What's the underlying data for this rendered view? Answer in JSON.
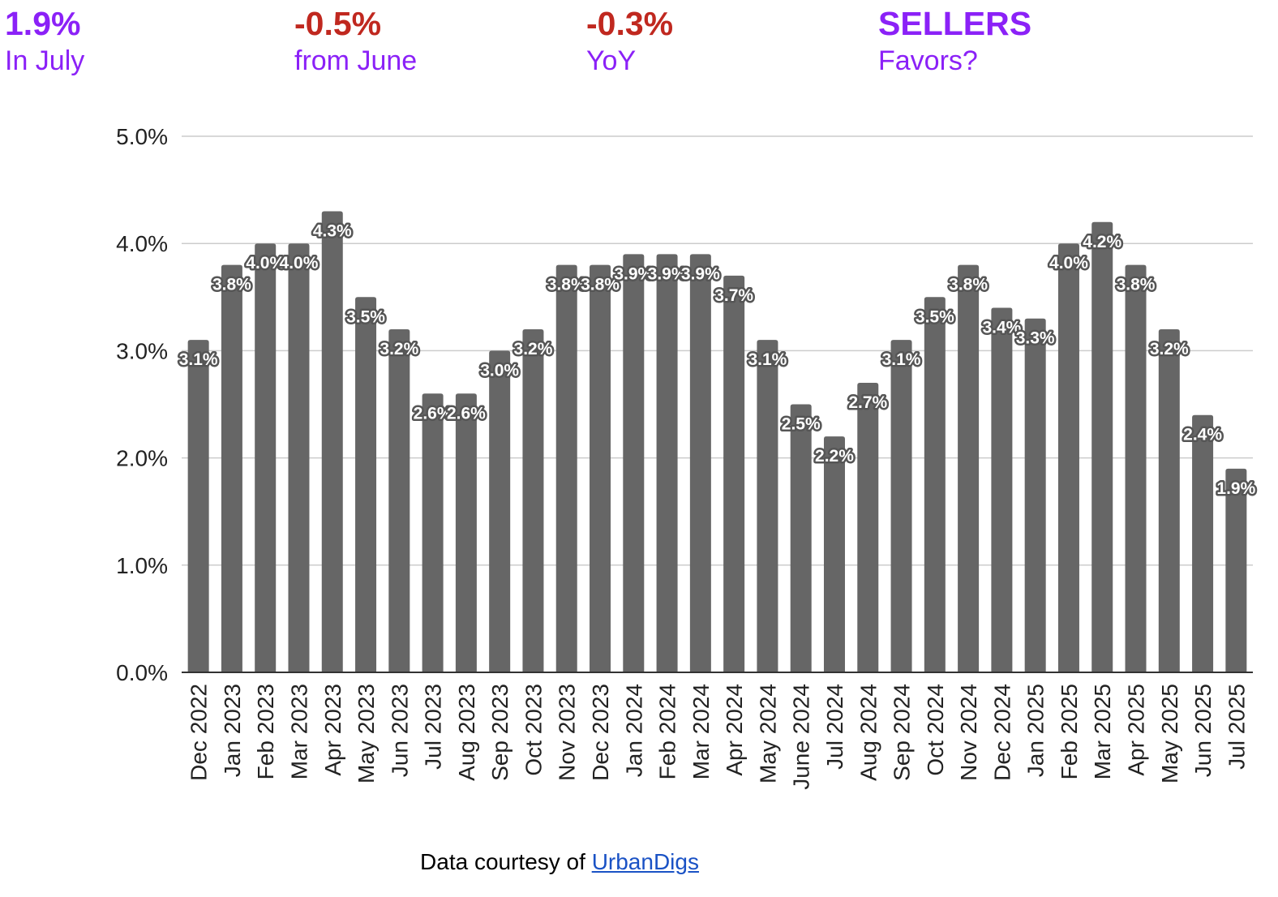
{
  "stats": [
    {
      "value": "1.9%",
      "label": "In July",
      "value_color": "#8b21f7",
      "label_color": "#8b21f7"
    },
    {
      "value": "-0.5%",
      "label": "from June",
      "value_color": "#c0281f",
      "label_color": "#8b21f7"
    },
    {
      "value": "-0.3%",
      "label": "YoY",
      "value_color": "#c0281f",
      "label_color": "#8b21f7"
    },
    {
      "value": "SELLERS",
      "label": "Favors?",
      "value_color": "#8b21f7",
      "label_color": "#8b21f7"
    }
  ],
  "credit": {
    "prefix": "Data courtesy of ",
    "link_text": "UrbanDigs",
    "link_color": "#1a52c5"
  },
  "chart_data": {
    "type": "bar",
    "bar_color": "#666666",
    "grid": true,
    "ylim": [
      0,
      5
    ],
    "yticks": [
      "0.0%",
      "1.0%",
      "2.0%",
      "3.0%",
      "4.0%",
      "5.0%"
    ],
    "categories": [
      "Dec 2022",
      "Jan 2023",
      "Feb 2023",
      "Mar 2023",
      "Apr 2023",
      "May 2023",
      "Jun 2023",
      "Jul 2023",
      "Aug 2023",
      "Sep 2023",
      "Oct 2023",
      "Nov 2023",
      "Dec 2023",
      "Jan 2024",
      "Feb 2024",
      "Mar 2024",
      "Apr 2024",
      "May 2024",
      "June 2024",
      "Jul 2024",
      "Aug 2024",
      "Sep 2024",
      "Oct 2024",
      "Nov 2024",
      "Dec 2024",
      "Jan 2025",
      "Feb 2025",
      "Mar 2025",
      "Apr 2025",
      "May 2025",
      "Jun 2025",
      "Jul 2025"
    ],
    "values": [
      3.1,
      3.8,
      4.0,
      4.0,
      4.3,
      3.5,
      3.2,
      2.6,
      2.6,
      3.0,
      3.2,
      3.8,
      3.8,
      3.9,
      3.9,
      3.9,
      3.7,
      3.1,
      2.5,
      2.2,
      2.7,
      3.1,
      3.5,
      3.8,
      3.4,
      3.3,
      4.0,
      4.2,
      3.8,
      3.2,
      2.4,
      1.9
    ],
    "data_labels": [
      "3.1%",
      "3.8%",
      "4.0%",
      "4.0%",
      "4.3%",
      "3.5%",
      "3.2%",
      "2.6%",
      "2.6%",
      "3.0%",
      "3.2%",
      "3.8%",
      "3.8%",
      "3.9%",
      "3.9%",
      "3.9%",
      "3.7%",
      "3.1%",
      "2.5%",
      "2.2%",
      "2.7%",
      "3.1%",
      "3.5%",
      "3.8%",
      "3.4%",
      "3.3%",
      "4.0%",
      "4.2%",
      "3.8%",
      "3.2%",
      "2.4%",
      "1.9%"
    ]
  }
}
